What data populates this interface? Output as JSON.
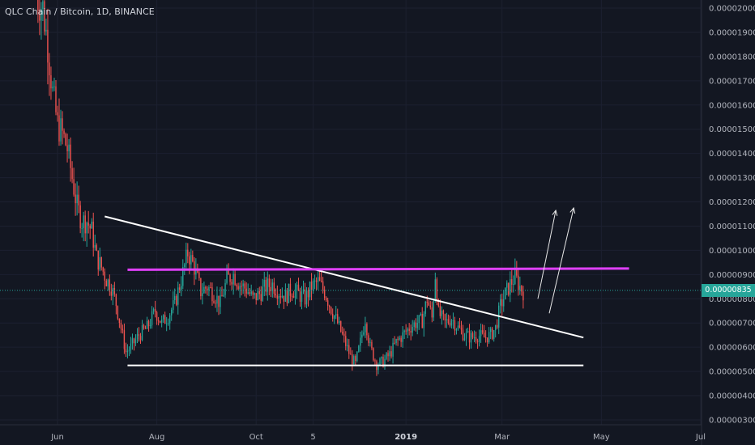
{
  "header": {
    "symbol": "QLC Chain / Bitcoin, 1D, BINANCE"
  },
  "current_price_label": "0.00000835",
  "colors": {
    "background": "#131722",
    "up": "#26a69a",
    "down": "#ef5350",
    "resistance": "#e040fb",
    "trendline": "#ffffff",
    "badge": "#26a69a"
  },
  "chart_data": {
    "type": "candlestick",
    "title": "",
    "xlabel": "",
    "ylabel": "",
    "ylim": [
      3e-06,
      2.05e-05
    ],
    "y_ticks": [
      "0.00002000",
      "0.00001900",
      "0.00001800",
      "0.00001700",
      "0.00001600",
      "0.00001500",
      "0.00001400",
      "0.00001300",
      "0.00001200",
      "0.00001100",
      "0.00001000",
      "0.00000900",
      "0.00000800",
      "0.00000700",
      "0.00000600",
      "0.00000500",
      "0.00000400",
      "0.00000300"
    ],
    "x_ticks": [
      {
        "label": "Jun",
        "day": 0,
        "bold": false
      },
      {
        "label": "Aug",
        "day": 61,
        "bold": false
      },
      {
        "label": "Oct",
        "day": 122,
        "bold": false
      },
      {
        "label": "5",
        "day": 157,
        "bold": false
      },
      {
        "label": "2019",
        "day": 214,
        "bold": true
      },
      {
        "label": "Mar",
        "day": 273,
        "bold": false
      },
      {
        "label": "May",
        "day": 334,
        "bold": false
      },
      {
        "label": "Jul",
        "day": 395,
        "bold": false
      }
    ],
    "close_path": [
      [
        -13,
        2.05e-05
      ],
      [
        -9,
        2e-05
      ],
      [
        -6,
        1.85e-05
      ],
      [
        -3,
        1.65e-05
      ],
      [
        0,
        1.52e-05
      ],
      [
        3,
        1.48e-05
      ],
      [
        6,
        1.42e-05
      ],
      [
        9,
        1.3e-05
      ],
      [
        12,
        1.18e-05
      ],
      [
        15,
        1.12e-05
      ],
      [
        18,
        1.12e-05
      ],
      [
        21,
        1.08e-05
      ],
      [
        24,
        9.7e-06
      ],
      [
        27,
        9.3e-06
      ],
      [
        30,
        8.8e-06
      ],
      [
        33,
        8.5e-06
      ],
      [
        36,
        7.8e-06
      ],
      [
        39,
        6.8e-06
      ],
      [
        42,
        5.8e-06
      ],
      [
        45,
        6e-06
      ],
      [
        50,
        6.5e-06
      ],
      [
        55,
        6.8e-06
      ],
      [
        60,
        7.5e-06
      ],
      [
        64,
        7e-06
      ],
      [
        68,
        7.3e-06
      ],
      [
        72,
        7.8e-06
      ],
      [
        76,
        8.8e-06
      ],
      [
        80,
        9.9e-06
      ],
      [
        84,
        9.3e-06
      ],
      [
        88,
        8.3e-06
      ],
      [
        92,
        8.5e-06
      ],
      [
        96,
        8.2e-06
      ],
      [
        100,
        7.8e-06
      ],
      [
        104,
        8.8e-06
      ],
      [
        108,
        9e-06
      ],
      [
        112,
        8.6e-06
      ],
      [
        116,
        8.4e-06
      ],
      [
        120,
        8e-06
      ],
      [
        124,
        8.2e-06
      ],
      [
        128,
        8.5e-06
      ],
      [
        132,
        8.6e-06
      ],
      [
        136,
        8.3e-06
      ],
      [
        140,
        8.1e-06
      ],
      [
        144,
        8.4e-06
      ],
      [
        148,
        8.2e-06
      ],
      [
        152,
        8e-06
      ],
      [
        156,
        8.5e-06
      ],
      [
        160,
        8.7e-06
      ],
      [
        164,
        8.3e-06
      ],
      [
        168,
        7.6e-06
      ],
      [
        172,
        7e-06
      ],
      [
        176,
        6.3e-06
      ],
      [
        180,
        5.6e-06
      ],
      [
        183,
        5.3e-06
      ],
      [
        186,
        6.2e-06
      ],
      [
        189,
        7.2e-06
      ],
      [
        192,
        6e-06
      ],
      [
        196,
        5.3e-06
      ],
      [
        200,
        5.4e-06
      ],
      [
        204,
        5.7e-06
      ],
      [
        208,
        6.2e-06
      ],
      [
        212,
        6.5e-06
      ],
      [
        216,
        6.8e-06
      ],
      [
        220,
        7e-06
      ],
      [
        224,
        7.1e-06
      ],
      [
        227,
        8e-06
      ],
      [
        230,
        7.2e-06
      ],
      [
        232,
        9e-06
      ],
      [
        234,
        7.4e-06
      ],
      [
        238,
        7e-06
      ],
      [
        242,
        7.2e-06
      ],
      [
        246,
        6.8e-06
      ],
      [
        250,
        6.5e-06
      ],
      [
        254,
        6.4e-06
      ],
      [
        258,
        6.5e-06
      ],
      [
        262,
        6.4e-06
      ],
      [
        266,
        6.5e-06
      ],
      [
        269,
        6.8e-06
      ],
      [
        272,
        7.7e-06
      ],
      [
        275,
        8.2e-06
      ],
      [
        278,
        8.6e-06
      ],
      [
        281,
        8.9e-06
      ],
      [
        284,
        8.5e-06
      ],
      [
        286,
        8.3e-06
      ]
    ],
    "annotations": {
      "resistance_line": {
        "start": [
          43,
          9.2e-06
        ],
        "end": [
          351,
          9.25e-06
        ]
      },
      "support_line": {
        "start": [
          43,
          5.25e-06
        ],
        "end": [
          323,
          5.25e-06
        ]
      },
      "descending_trendline": {
        "start": [
          29,
          1.14e-05
        ],
        "end": [
          323,
          6.4e-06
        ]
      },
      "arrows": [
        {
          "start": [
            295,
            8e-06
          ],
          "end": [
            306,
            1.165e-05
          ]
        },
        {
          "start": [
            302,
            7.4e-06
          ],
          "end": [
            317,
            1.175e-05
          ]
        }
      ],
      "current_price": 8.35e-06
    }
  }
}
